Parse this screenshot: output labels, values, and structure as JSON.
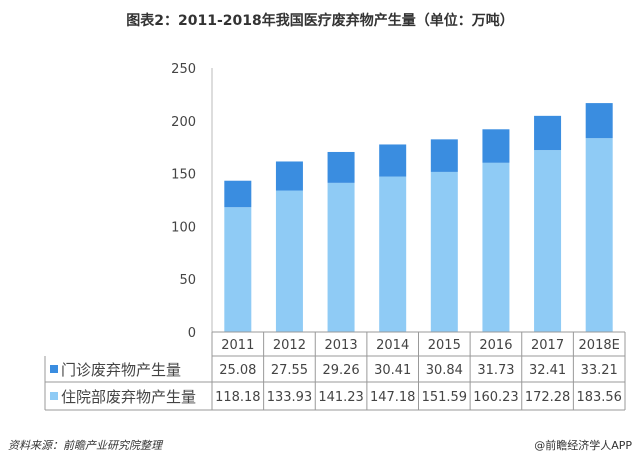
{
  "chart_data": {
    "type": "bar",
    "stacked": true,
    "title": "图表2：2011-2018年我国医疗废弃物产生量（单位：万吨）",
    "categories": [
      "2011",
      "2012",
      "2013",
      "2014",
      "2015",
      "2016",
      "2017",
      "2018E"
    ],
    "ylim": [
      0,
      250
    ],
    "yticks": [
      0,
      50,
      100,
      150,
      200,
      250
    ],
    "grid": false,
    "legend": "data-table",
    "series": [
      {
        "name": "住院部废弃物产生量",
        "color": "#8fcbf5",
        "values": [
          118.18,
          133.93,
          141.23,
          147.18,
          151.59,
          160.23,
          172.28,
          183.56
        ]
      },
      {
        "name": "门诊废弃物产生量",
        "color": "#3a8de0",
        "values": [
          25.08,
          27.55,
          29.26,
          30.41,
          30.84,
          31.73,
          32.41,
          33.21
        ]
      }
    ],
    "table_rows": [
      {
        "name": "门诊废弃物产生量",
        "labels": [
          "25.08",
          "27.55",
          "29.26",
          "30.41",
          "30.84",
          "31.73",
          "32.41",
          "33.21"
        ]
      },
      {
        "name": "住院部废弃物产生量",
        "labels": [
          "118.18",
          "133.93",
          "141.23",
          "147.18",
          "151.59",
          "160.23",
          "172.28",
          "183.56"
        ]
      }
    ]
  },
  "footer": {
    "source": "资料来源：前瞻产业研究院整理",
    "credit": "@前瞻经济学人APP"
  }
}
